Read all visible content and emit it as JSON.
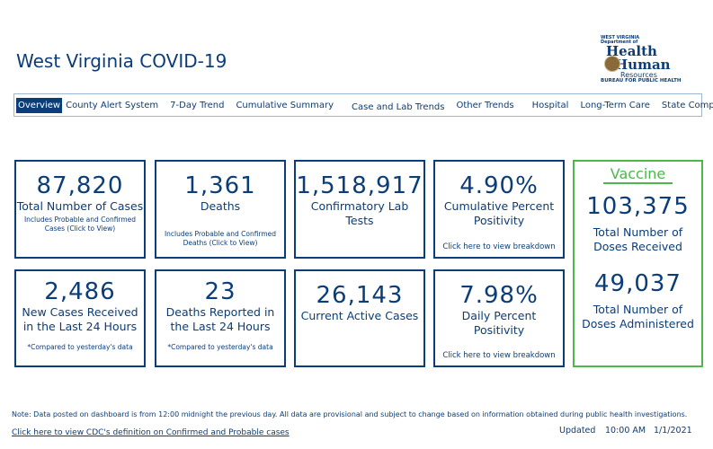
{
  "title": "West Virginia COVID-19",
  "logo": {
    "line1": "WEST VIRGINIA",
    "line2": "Department of",
    "line3": "Health",
    "line4": "Human",
    "line5": "Resources",
    "line6": "BUREAU FOR PUBLIC HEALTH"
  },
  "nav": [
    "Overview",
    "County Alert System",
    "7-Day Trend",
    "Cumulative Summary",
    "Case and Lab Trends",
    "Other Trends",
    "Hospital",
    "Long-Term Care",
    "State Comparison"
  ],
  "cards": {
    "total_cases": {
      "value": "87,820",
      "label": "Total Number of Cases",
      "note": "Includes Probable and Confirmed Cases (Click to View)"
    },
    "deaths": {
      "value": "1,361",
      "label": "Deaths",
      "note": "Includes Probable and Confirmed Deaths (Click to View)"
    },
    "lab_tests": {
      "value": "1,518,917",
      "label": "Confirmatory Lab Tests"
    },
    "cum_positivity": {
      "value": "4.90%",
      "label": "Cumulative Percent Positivity",
      "link": "Click here to view breakdown"
    },
    "new_cases": {
      "value": "2,486",
      "label": "New Cases Received in the Last 24 Hours",
      "note": "*Compared to yesterday's data"
    },
    "new_deaths": {
      "value": "23",
      "label": "Deaths Reported in the Last 24 Hours",
      "note": "*Compared to yesterday's data"
    },
    "active": {
      "value": "26,143",
      "label": "Current Active Cases"
    },
    "daily_positivity": {
      "value": "7.98%",
      "label": "Daily Percent Positivity",
      "link": "Click here to view breakdown"
    },
    "vaccine": {
      "heading": "Vaccine",
      "received": "103,375",
      "received_label": "Total Number of Doses Received",
      "administered": "49,037",
      "administered_label": "Total Number of Doses Administered"
    }
  },
  "footer": {
    "note": "Note: Data posted on dashboard is from 12:00 midnight the previous day. All data are provisional and subject to change based on information obtained during public health investigations.",
    "cdc_link": "Click here to view CDC's definition on Confirmed and Probable cases",
    "updated_label": "Updated",
    "time": "10:00 AM",
    "date": "1/1/2021"
  },
  "colors": {
    "primary": "#0b3d78",
    "vaccine": "#4cb84c"
  }
}
